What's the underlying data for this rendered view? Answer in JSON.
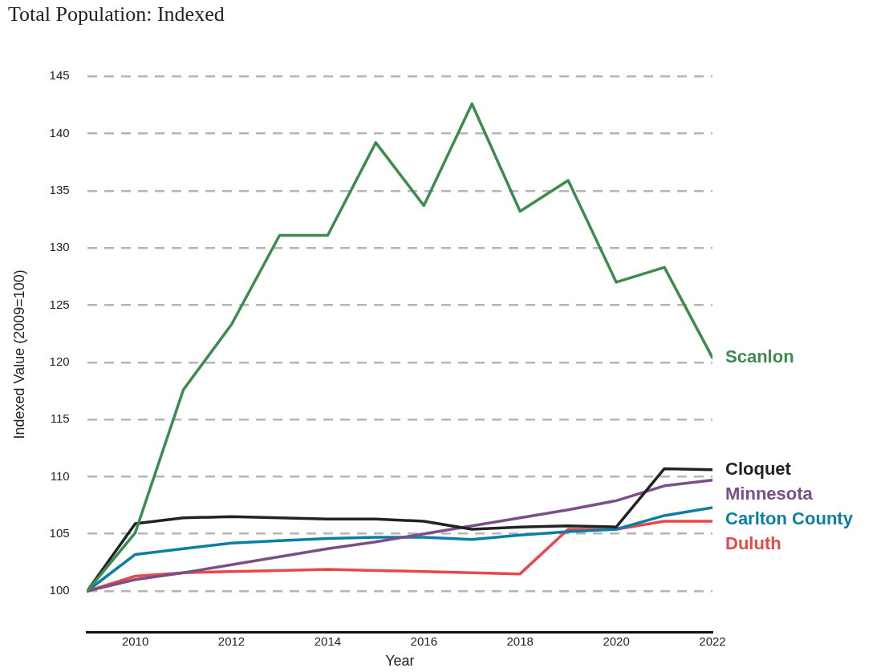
{
  "chart_data": {
    "type": "line",
    "title": "Total Population: Indexed",
    "xlabel": "Year",
    "ylabel": "Indexed Value (2009=100)",
    "x": [
      2009,
      2010,
      2011,
      2012,
      2013,
      2014,
      2015,
      2016,
      2017,
      2018,
      2019,
      2020,
      2021,
      2022
    ],
    "xlim": [
      2009,
      2022
    ],
    "xticks": [
      2010,
      2012,
      2014,
      2016,
      2018,
      2020,
      2022
    ],
    "ylim": [
      96.4,
      145
    ],
    "yticks": [
      100,
      105,
      110,
      115,
      120,
      125,
      130,
      135,
      140,
      145
    ],
    "grid": "y",
    "legend": false,
    "marker": "none",
    "line_style": "solid",
    "series": [
      {
        "name": "Scanlon",
        "color": "#3d8b4f",
        "values": [
          100,
          105.1,
          117.6,
          123.3,
          131.1,
          131.1,
          139.2,
          133.7,
          142.6,
          133.2,
          135.9,
          127.0,
          128.3,
          120.4
        ]
      },
      {
        "name": "Cloquet",
        "color": "#222222",
        "values": [
          100,
          105.9,
          106.4,
          106.5,
          106.4,
          106.3,
          106.3,
          106.1,
          105.4,
          105.6,
          105.7,
          105.6,
          110.7,
          110.6
        ]
      },
      {
        "name": "Minnesota",
        "color": "#7a4f87",
        "values": [
          100,
          101.0,
          101.6,
          102.3,
          103.0,
          103.7,
          104.3,
          105.0,
          105.7,
          106.4,
          107.1,
          107.9,
          109.2,
          109.7
        ]
      },
      {
        "name": "Carlton County",
        "color": "#0b7fa3",
        "values": [
          100,
          103.2,
          103.7,
          104.2,
          104.4,
          104.6,
          104.7,
          104.7,
          104.5,
          104.9,
          105.2,
          105.4,
          106.6,
          107.3
        ]
      },
      {
        "name": "Duluth",
        "color": "#e8484a",
        "values": [
          100,
          101.3,
          101.6,
          101.7,
          101.8,
          101.9,
          101.8,
          101.7,
          101.6,
          101.5,
          105.4,
          105.4,
          106.1,
          106.1
        ]
      }
    ]
  }
}
